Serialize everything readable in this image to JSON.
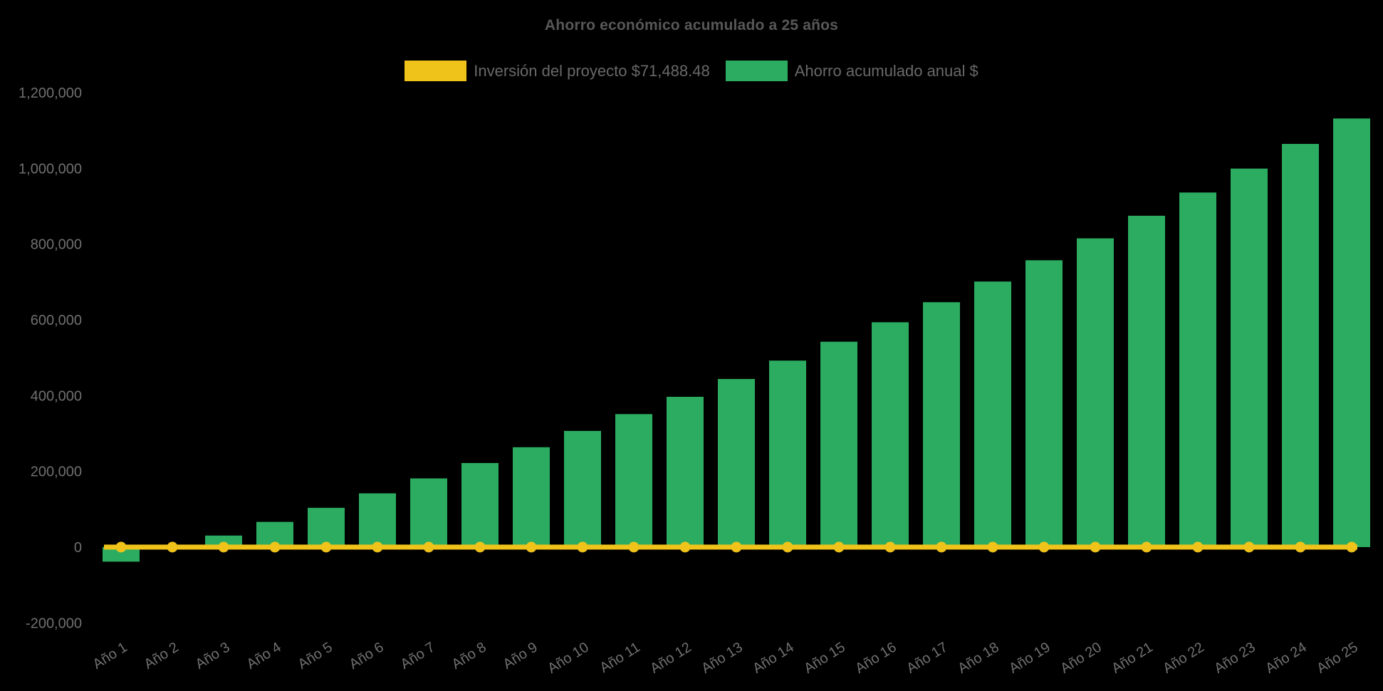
{
  "chart_data": {
    "type": "bar",
    "title": "Ahorro económico acumulado a 25 años",
    "xlabel": "",
    "ylabel": "",
    "ylim": [
      -200000,
      1200000
    ],
    "grid": false,
    "legend_position": "top-center",
    "background_color": "#000000",
    "text_colors": {
      "title": "#585858",
      "legend": "#696969",
      "ticks": "#707070"
    },
    "y_ticks": [
      {
        "value": 1200000,
        "label": "1,200,000"
      },
      {
        "value": 1000000,
        "label": "1,000,000"
      },
      {
        "value": 800000,
        "label": "800,000"
      },
      {
        "value": 600000,
        "label": "600,000"
      },
      {
        "value": 400000,
        "label": "400,000"
      },
      {
        "value": 200000,
        "label": "200,000"
      },
      {
        "value": 0,
        "label": "0"
      },
      {
        "value": -200000,
        "label": "-200,000"
      }
    ],
    "categories": [
      "Año 1",
      "Año 2",
      "Año 3",
      "Año 4",
      "Año 5",
      "Año 6",
      "Año 7",
      "Año 8",
      "Año 9",
      "Año 10",
      "Año 11",
      "Año 12",
      "Año 13",
      "Año 14",
      "Año 15",
      "Año 16",
      "Año 17",
      "Año 18",
      "Año 19",
      "Año 20",
      "Año 21",
      "Año 22",
      "Año 23",
      "Año 24",
      "Año 25"
    ],
    "series": [
      {
        "name": "Inversión del proyecto $71,488.48",
        "type": "line",
        "color": "#EFC31A",
        "marker": "circle",
        "values": [
          0,
          0,
          0,
          0,
          0,
          0,
          0,
          0,
          0,
          0,
          0,
          0,
          0,
          0,
          0,
          0,
          0,
          0,
          0,
          0,
          0,
          0,
          0,
          0,
          0
        ]
      },
      {
        "name": "Ahorro acumulado anual $",
        "type": "bar",
        "color": "#2BAC60",
        "values": [
          -38488,
          -4498,
          30511,
          66571,
          103713,
          141969,
          181373,
          221959,
          263762,
          306820,
          351169,
          396848,
          443899,
          492360,
          542276,
          593689,
          646644,
          701188,
          757368,
          815234,
          874836,
          936225,
          999457,
          1064585,
          1131667
        ]
      }
    ]
  }
}
